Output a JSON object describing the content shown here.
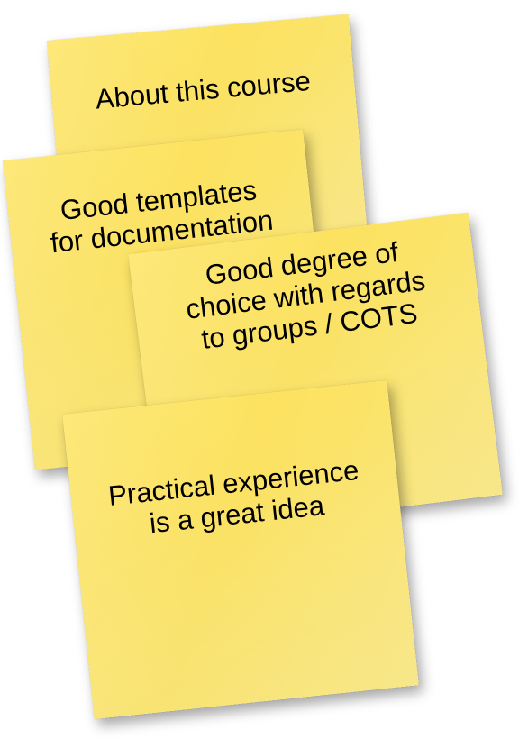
{
  "notes": [
    {
      "text": "About this course"
    },
    {
      "text": "Good templates\nfor documentation"
    },
    {
      "text": "Good degree of\nchoice with regards\nto groups / COTS"
    },
    {
      "text": "Practical experience\nis a great idea"
    }
  ],
  "colors": {
    "note_yellow": "#fbe262",
    "background": "#ffffff",
    "text": "#000000"
  }
}
